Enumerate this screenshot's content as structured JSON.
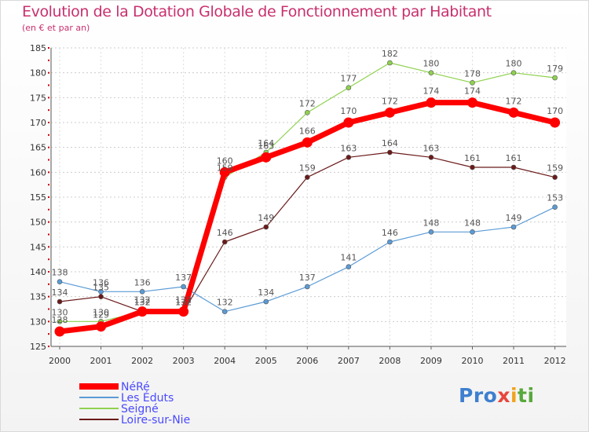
{
  "chart_data": {
    "type": "line",
    "title": "Evolution de la Dotation Globale de Fonctionnement par Habitant",
    "subtitle": "(en € et par an)",
    "xlabel": "",
    "ylabel": "",
    "ylim": [
      125,
      185
    ],
    "yticks": [
      125,
      130,
      135,
      140,
      145,
      150,
      155,
      160,
      165,
      170,
      175,
      180,
      185
    ],
    "categories": [
      "2000",
      "2001",
      "2002",
      "2003",
      "2004",
      "2005",
      "2006",
      "2007",
      "2008",
      "2009",
      "2010",
      "2011",
      "2012"
    ],
    "legend_position": "bottom-left",
    "series": [
      {
        "name": "Loire-sur-Nie",
        "color": "#6b1a1a",
        "values": [
          134,
          135,
          132,
          132,
          146,
          149,
          159,
          163,
          164,
          163,
          161,
          161,
          159
        ]
      },
      {
        "name": "Les Éduts",
        "color": "#5b9bd5",
        "values": [
          138,
          136,
          136,
          137,
          132,
          134,
          137,
          141,
          146,
          148,
          148,
          149,
          153
        ]
      },
      {
        "name": "Seigné",
        "color": "#8fd14f",
        "values": [
          130,
          130,
          132,
          132,
          159,
          164,
          172,
          177,
          182,
          180,
          178,
          180,
          179
        ]
      },
      {
        "name": "NéRé",
        "color": "#ff0000",
        "values": [
          128,
          129,
          132,
          132,
          160,
          163,
          166,
          170,
          172,
          174,
          174,
          172,
          170
        ]
      }
    ]
  },
  "legend": {
    "items": [
      "NéRé",
      "Les Éduts",
      "Seigné",
      "Loire-sur-Nie"
    ]
  },
  "logo": {
    "p1": "Pro",
    "p2": "x",
    "p3": "i",
    "p4": "ti"
  }
}
